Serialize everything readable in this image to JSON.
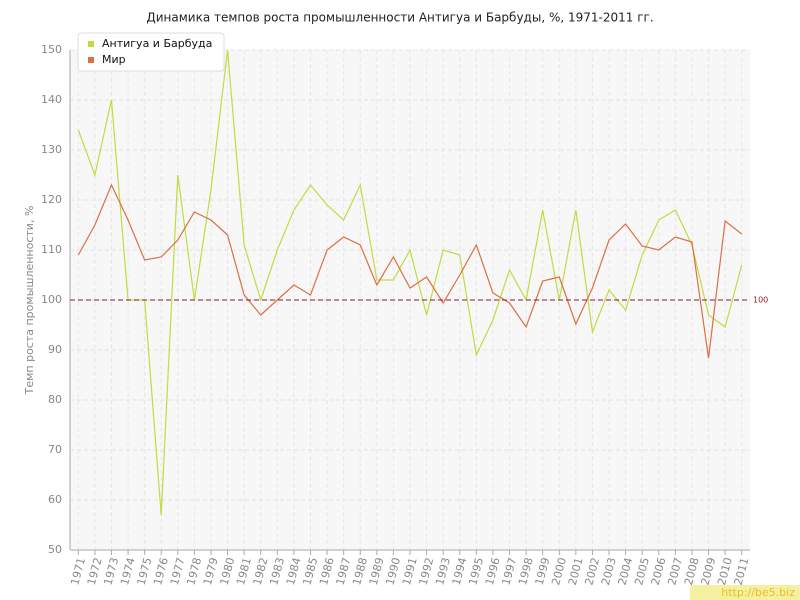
{
  "chart_data": {
    "type": "line",
    "title": "Динамика темпов роста промышленности Антигуа и Барбуды, %, 1971-2011 гг.",
    "y_label": "Темп роста промышленности, %",
    "categories": [
      "1971",
      "1972",
      "1973",
      "1974",
      "1975",
      "1976",
      "1977",
      "1978",
      "1979",
      "1980",
      "1981",
      "1982",
      "1983",
      "1984",
      "1985",
      "1986",
      "1987",
      "1988",
      "1989",
      "1990",
      "1991",
      "1992",
      "1993",
      "1994",
      "1995",
      "1996",
      "1997",
      "1998",
      "1999",
      "2000",
      "2001",
      "2002",
      "2003",
      "2004",
      "2005",
      "2006",
      "2007",
      "2008",
      "2009",
      "2010",
      "2011"
    ],
    "series": [
      {
        "name": "Антигуа и Барбуда",
        "color": "#bfdc42",
        "values": [
          134,
          125,
          140,
          100,
          100,
          57,
          125,
          100,
          122,
          150,
          111,
          100,
          110,
          118,
          123,
          119,
          116,
          123,
          104,
          104,
          110,
          97,
          110,
          109,
          89,
          96,
          106,
          100,
          118,
          100,
          118,
          93.6,
          102,
          98,
          109,
          116,
          118,
          111,
          97,
          94.6,
          107
        ]
      },
      {
        "name": "Мир",
        "color": "#dc6f45",
        "values": [
          109,
          115,
          123,
          116,
          108,
          108.6,
          112,
          117.6,
          116,
          113,
          101,
          97,
          100,
          103,
          101,
          110,
          112.6,
          111,
          103,
          108.6,
          102.4,
          104.6,
          99.4,
          105,
          111,
          101.4,
          99.4,
          94.6,
          103.8,
          104.6,
          95.2,
          102.4,
          112,
          115.2,
          110.8,
          110,
          112.6,
          111.6,
          88.4,
          115.8,
          113.2
        ]
      }
    ],
    "reference_line": 100,
    "ylim": [
      50,
      150
    ],
    "yticks": [
      50,
      60,
      70,
      80,
      90,
      100,
      110,
      120,
      130,
      140,
      150
    ],
    "grid": true,
    "legend": "top-left",
    "watermark": "http://be5.biz"
  }
}
